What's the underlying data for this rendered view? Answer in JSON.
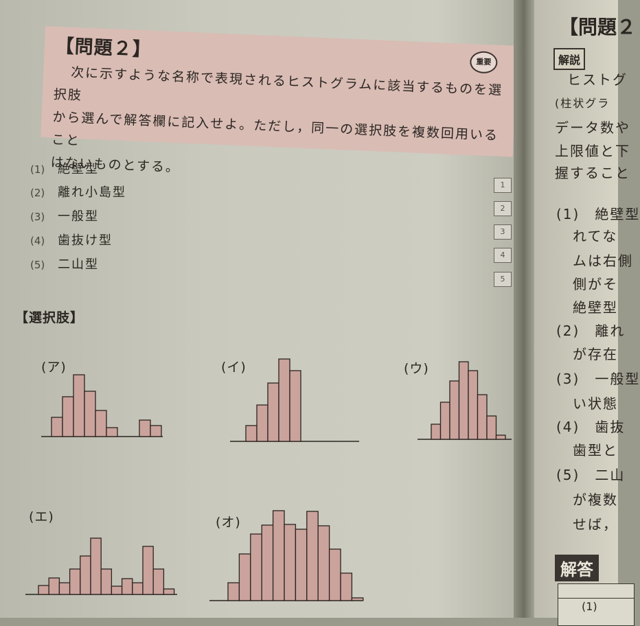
{
  "question": {
    "title": "【問題２】",
    "badge": "重要",
    "lines": [
      "次に示すような名称で表現されるヒストグラムに該当するものを選択肢",
      "から選んで解答欄に記入せよ。ただし，同一の選択肢を複数回用いること",
      "はないものとする。"
    ]
  },
  "items": [
    {
      "num": "(1)",
      "label": "絶壁型",
      "box": "1"
    },
    {
      "num": "(2)",
      "label": "離れ小島型",
      "box": "2"
    },
    {
      "num": "(3)",
      "label": "一般型",
      "box": "3"
    },
    {
      "num": "(4)",
      "label": "歯抜け型",
      "box": "4"
    },
    {
      "num": "(5)",
      "label": "二山型",
      "box": "5"
    }
  ],
  "choices": {
    "title": "【選択肢】",
    "histograms": [
      {
        "label": "(ア)",
        "heights": [
          28,
          58,
          90,
          66,
          38,
          13,
          0,
          0,
          24,
          16
        ]
      },
      {
        "label": "(イ)",
        "heights": [
          23,
          53,
          85,
          120,
          103
        ]
      },
      {
        "label": "(ウ)",
        "heights": [
          22,
          54,
          85,
          113,
          100,
          65,
          34,
          6
        ]
      },
      {
        "label": "(エ)",
        "heights": [
          13,
          24,
          17,
          37,
          56,
          82,
          37,
          12,
          23,
          17,
          70,
          37,
          8
        ]
      },
      {
        "label": "(オ)",
        "heights": [
          26,
          68,
          97,
          110,
          131,
          111,
          104,
          130,
          109,
          75,
          40,
          4
        ]
      }
    ]
  },
  "right_page": {
    "title": "【問題２",
    "explanation_tag": "解説",
    "answer_tag": "解答",
    "answer_row": "(1)",
    "lines": [
      "ヒストグ",
      "(柱状グラ",
      "データ数や",
      "上限値と下",
      "握すること",
      "(1)　絶壁型",
      "れてな",
      "ムは右側",
      "側がそ",
      "絶壁型",
      "(2)　離れ",
      "が存在",
      "(3)　一般型",
      "い状態",
      "(4)　歯抜",
      "歯型と",
      "(5)　二山",
      "が複数",
      "せば，"
    ]
  }
}
